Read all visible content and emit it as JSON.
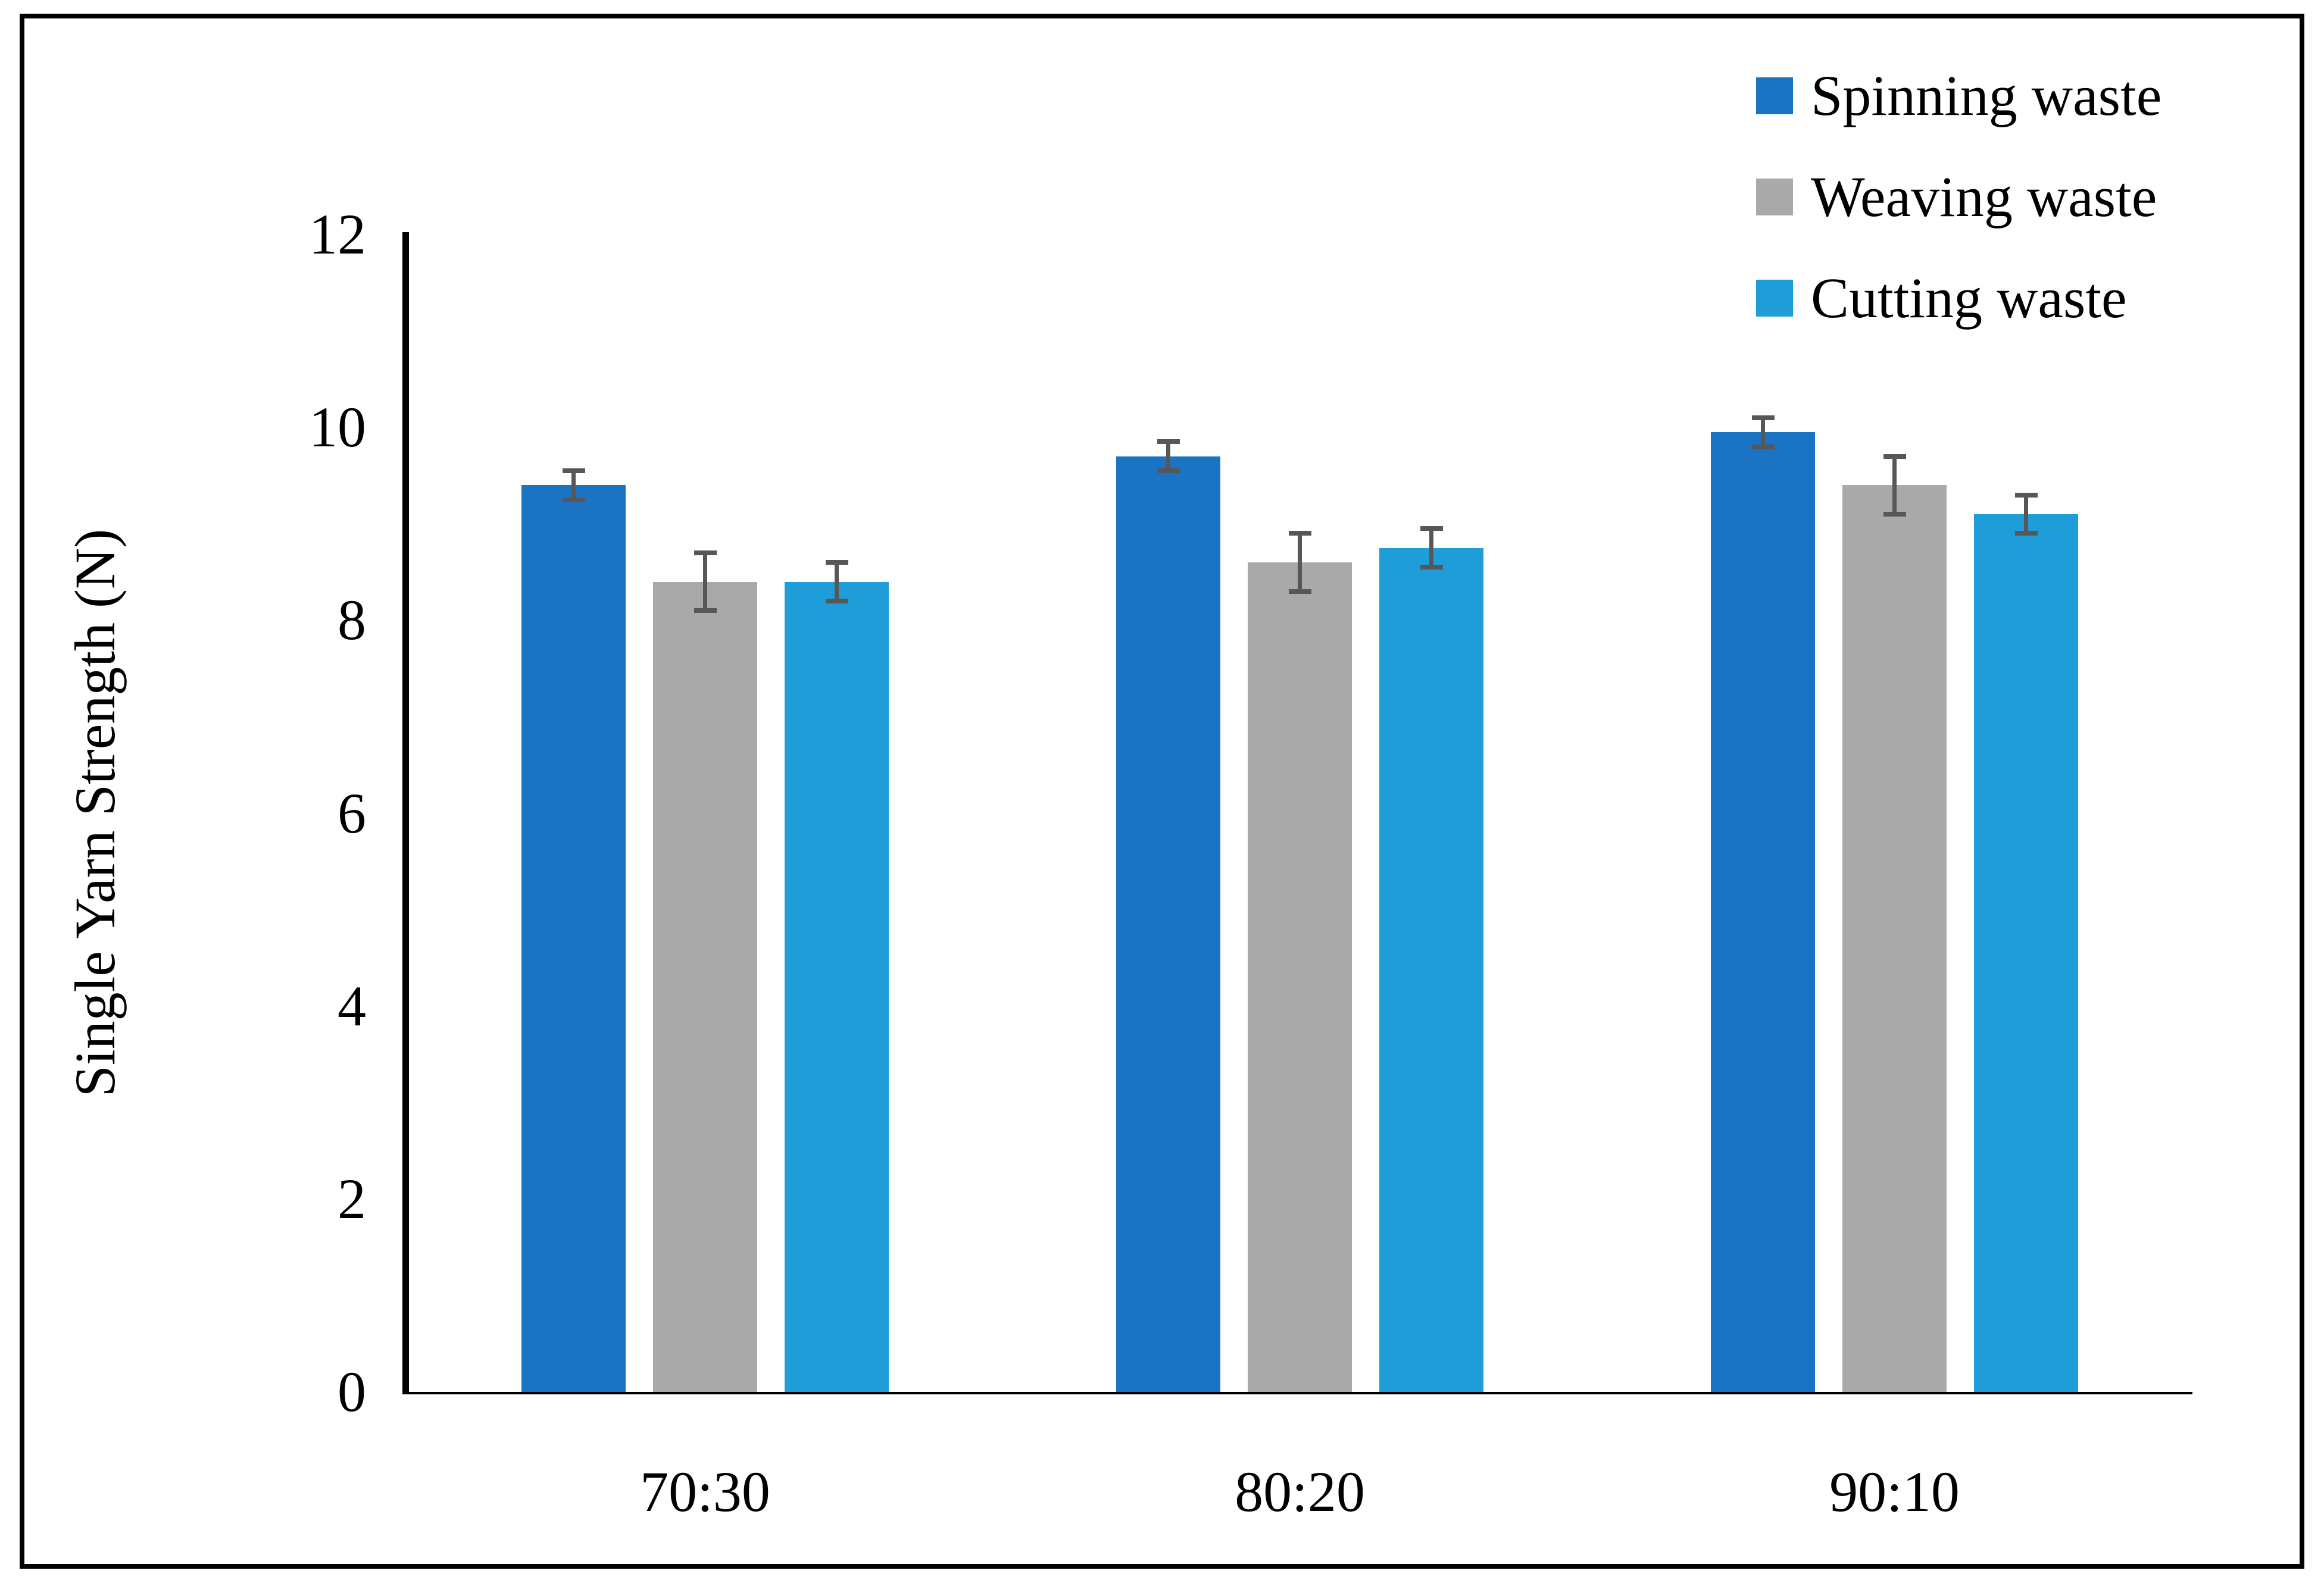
{
  "chart_data": {
    "type": "bar",
    "title": "",
    "categories": [
      "70:30",
      "80:20",
      "90:10"
    ],
    "series": [
      {
        "name": "Spinning waste",
        "color": "#1B73C4",
        "values": [
          9.4,
          9.7,
          9.95
        ],
        "errors": [
          0.15,
          0.15,
          0.15
        ]
      },
      {
        "name": "Weaving waste",
        "color": "#A9A9A9",
        "values": [
          8.4,
          8.6,
          9.4
        ],
        "errors": [
          0.3,
          0.3,
          0.3
        ]
      },
      {
        "name": "Cutting waste",
        "color": "#1F9DD9",
        "values": [
          8.4,
          8.75,
          9.1
        ],
        "errors": [
          0.2,
          0.2,
          0.2
        ]
      }
    ],
    "xlabel": "",
    "ylabel": "Single Yarn Strength (N)",
    "ylim": [
      0,
      12
    ],
    "yticks": [
      0,
      2,
      4,
      6,
      8,
      10,
      12
    ],
    "grid": false,
    "legend_position": "top-right",
    "error_bar_color": "#575757",
    "axis_color": "#000000"
  }
}
